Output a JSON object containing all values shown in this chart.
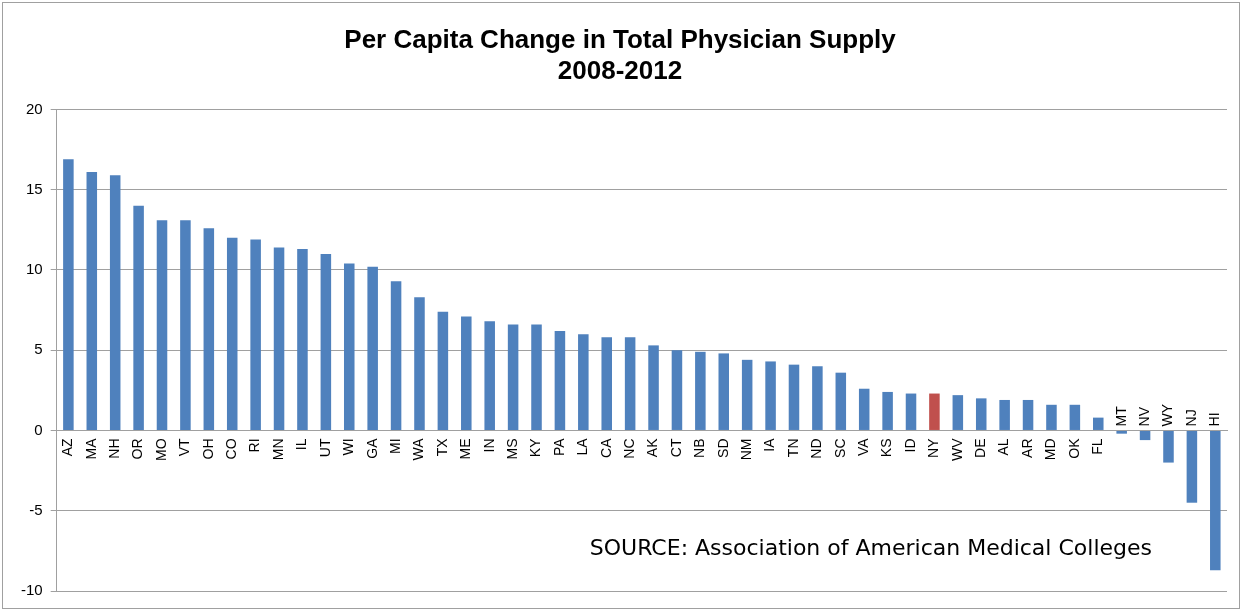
{
  "chart_data": {
    "type": "bar",
    "title": "Per Capita Change in Total Physician Supply\n2008-2012",
    "categories": [
      "AZ",
      "MA",
      "NH",
      "OR",
      "MO",
      "VT",
      "OH",
      "CO",
      "RI",
      "MN",
      "IL",
      "UT",
      "WI",
      "GA",
      "MI",
      "WA",
      "TX",
      "ME",
      "IN",
      "MS",
      "KY",
      "PA",
      "LA",
      "CA",
      "NC",
      "AK",
      "CT",
      "NB",
      "SD",
      "NM",
      "IA",
      "TN",
      "ND",
      "SC",
      "VA",
      "KS",
      "ID",
      "NY",
      "WV",
      "DE",
      "AL",
      "AR",
      "MD",
      "OK",
      "FL",
      "MT",
      "NV",
      "WY",
      "NJ",
      "HI"
    ],
    "values": [
      16.9,
      16.1,
      15.9,
      14.0,
      13.1,
      13.1,
      12.6,
      12.0,
      11.9,
      11.4,
      11.3,
      11.0,
      10.4,
      10.2,
      9.3,
      8.3,
      7.4,
      7.1,
      6.8,
      6.6,
      6.6,
      6.2,
      6.0,
      5.8,
      5.8,
      5.3,
      5.0,
      4.9,
      4.8,
      4.4,
      4.3,
      4.1,
      4.0,
      3.6,
      2.6,
      2.4,
      2.3,
      2.3,
      2.2,
      2.0,
      1.9,
      1.9,
      1.6,
      1.6,
      0.8,
      -0.2,
      -0.6,
      -2.0,
      -4.5,
      -8.7
    ],
    "colors": [
      "#4f81bd",
      "#4f81bd",
      "#4f81bd",
      "#4f81bd",
      "#4f81bd",
      "#4f81bd",
      "#4f81bd",
      "#4f81bd",
      "#4f81bd",
      "#4f81bd",
      "#4f81bd",
      "#4f81bd",
      "#4f81bd",
      "#4f81bd",
      "#4f81bd",
      "#4f81bd",
      "#4f81bd",
      "#4f81bd",
      "#4f81bd",
      "#4f81bd",
      "#4f81bd",
      "#4f81bd",
      "#4f81bd",
      "#4f81bd",
      "#4f81bd",
      "#4f81bd",
      "#4f81bd",
      "#4f81bd",
      "#4f81bd",
      "#4f81bd",
      "#4f81bd",
      "#4f81bd",
      "#4f81bd",
      "#4f81bd",
      "#4f81bd",
      "#4f81bd",
      "#4f81bd",
      "#c0504d",
      "#4f81bd",
      "#4f81bd",
      "#4f81bd",
      "#4f81bd",
      "#4f81bd",
      "#4f81bd",
      "#4f81bd",
      "#4f81bd",
      "#4f81bd",
      "#4f81bd",
      "#4f81bd",
      "#4f81bd"
    ],
    "ylim": [
      -10,
      20
    ],
    "yticks": [
      -10,
      -5,
      0,
      5,
      10,
      15,
      20
    ],
    "grid": "y",
    "annotations": [
      "SOURCE: Association of American Medical Colleges"
    ]
  }
}
